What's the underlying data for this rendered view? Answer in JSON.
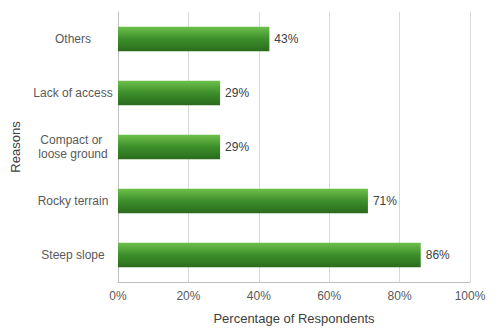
{
  "chart_data": {
    "type": "bar",
    "orientation": "horizontal",
    "x_label": "Percentage of Respondents",
    "y_label": "Reasons",
    "categories": [
      "Steep slope",
      "Rocky terrain",
      "Compact or loose ground",
      "Lack of access",
      "Others"
    ],
    "values": [
      86,
      71,
      29,
      29,
      43
    ],
    "value_labels": [
      "86%",
      "71%",
      "29%",
      "29%",
      "43%"
    ],
    "color": "#3d8f2b",
    "xlim": [
      0,
      100
    ],
    "xticks": [
      {
        "value": 0,
        "label": "0%"
      },
      {
        "value": 20,
        "label": "20%"
      },
      {
        "value": 40,
        "label": "40%"
      },
      {
        "value": 60,
        "label": "60%"
      },
      {
        "value": 80,
        "label": "80%"
      },
      {
        "value": 100,
        "label": "100%"
      }
    ],
    "grid": true,
    "data_labels": true
  }
}
